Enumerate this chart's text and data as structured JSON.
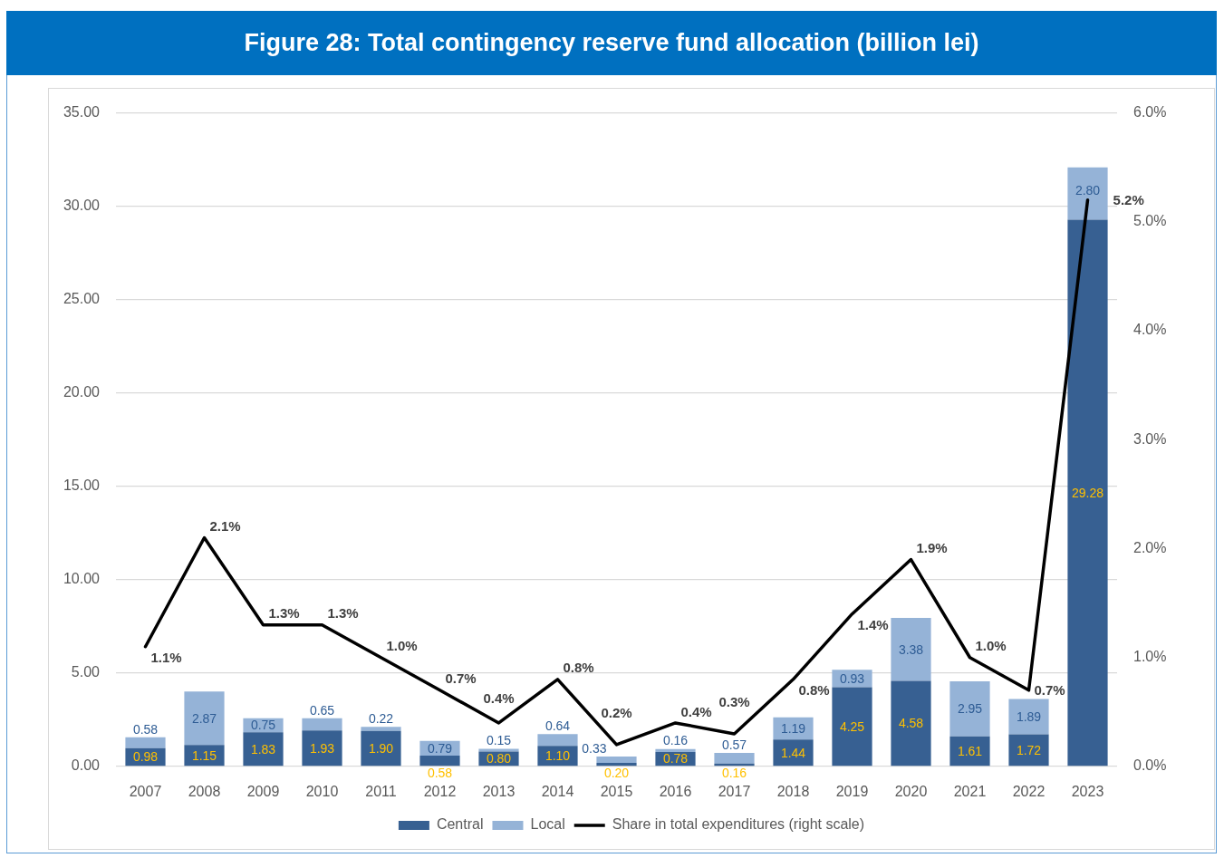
{
  "chart_data": {
    "type": "bar",
    "title": "Figure 28: Total contingency reserve fund allocation (billion lei)",
    "categories": [
      "2007",
      "2008",
      "2009",
      "2010",
      "2011",
      "2012",
      "2013",
      "2014",
      "2015",
      "2016",
      "2017",
      "2018",
      "2019",
      "2020",
      "2021",
      "2022",
      "2023"
    ],
    "stacked": true,
    "series": [
      {
        "name": "Central",
        "color": "#376092",
        "values": [
          0.98,
          1.15,
          1.83,
          1.93,
          1.9,
          0.58,
          0.8,
          1.1,
          0.2,
          0.78,
          0.16,
          1.44,
          4.25,
          4.58,
          1.61,
          1.72,
          29.28
        ],
        "value_labels": [
          "0.98",
          "1.15",
          "1.83",
          "1.93",
          "1.90",
          "0.58",
          "0.80",
          "1.10",
          "0.20",
          "0.78",
          "0.16",
          "1.44",
          "4.25",
          "4.58",
          "1.61",
          "1.72",
          "29.28"
        ]
      },
      {
        "name": "Local",
        "color": "#95b3d7",
        "values": [
          0.58,
          2.87,
          0.75,
          0.65,
          0.22,
          0.79,
          0.15,
          0.64,
          0.33,
          0.16,
          0.57,
          1.19,
          0.93,
          3.38,
          2.95,
          1.89,
          2.8
        ],
        "value_labels": [
          "0.58",
          "2.87",
          "0.75",
          "0.65",
          "0.22",
          "0.79",
          "0.15",
          "0.64",
          "0.33",
          "0.16",
          "0.57",
          "1.19",
          "0.93",
          "3.38",
          "2.95",
          "1.89",
          "2.80"
        ]
      },
      {
        "name": "Share in total expenditures (right scale)",
        "type": "line",
        "axis": "y2",
        "color": "#000000",
        "values": [
          1.1,
          2.1,
          1.3,
          1.3,
          1.0,
          0.7,
          0.4,
          0.8,
          0.2,
          0.4,
          0.3,
          0.8,
          1.4,
          1.9,
          1.0,
          0.7,
          5.2
        ],
        "value_labels": [
          "1.1%",
          "2.1%",
          "1.3%",
          "1.3%",
          "1.0%",
          "0.7%",
          "0.4%",
          "0.8%",
          "0.2%",
          "0.4%",
          "0.3%",
          "0.8%",
          "1.4%",
          "1.9%",
          "1.0%",
          "0.7%",
          "5.2%"
        ]
      }
    ],
    "ylim": [
      0,
      35
    ],
    "yticks": [
      {
        "value": 0,
        "label": "0.00"
      },
      {
        "value": 5,
        "label": "5.00"
      },
      {
        "value": 10,
        "label": "10.00"
      },
      {
        "value": 15,
        "label": "15.00"
      },
      {
        "value": 20,
        "label": "20.00"
      },
      {
        "value": 25,
        "label": "25.00"
      },
      {
        "value": 30,
        "label": "30.00"
      },
      {
        "value": 35,
        "label": "35.00"
      }
    ],
    "y2lim": [
      0,
      6
    ],
    "y2ticks": [
      {
        "value": 0,
        "label": "0.0%"
      },
      {
        "value": 1,
        "label": "1.0%"
      },
      {
        "value": 2,
        "label": "2.0%"
      },
      {
        "value": 3,
        "label": "3.0%"
      },
      {
        "value": 4,
        "label": "4.0%"
      },
      {
        "value": 5,
        "label": "5.0%"
      },
      {
        "value": 6,
        "label": "6.0%"
      }
    ],
    "grid": "y",
    "legend": "bottom",
    "marker": "none"
  }
}
